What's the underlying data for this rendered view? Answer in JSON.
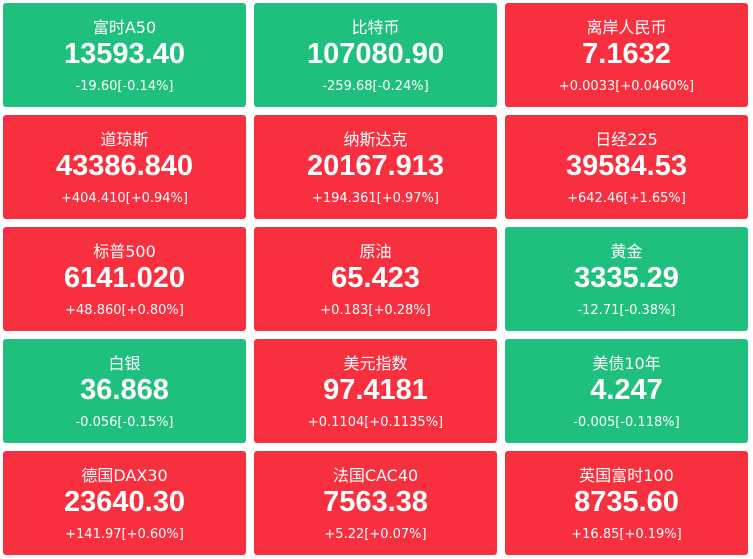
{
  "tiles": [
    {
      "name": "富时A50",
      "price": "13593.40",
      "change": "-19.60[-0.14%]",
      "color": "#1fc07d"
    },
    {
      "name": "比特币",
      "price": "107080.90",
      "change": "-259.68[-0.24%]",
      "color": "#1fc07d"
    },
    {
      "name": "离岸人民币",
      "price": "7.1632",
      "change": "+0.0033[+0.0460%]",
      "color": "#f82f3e"
    },
    {
      "name": "道琼斯",
      "price": "43386.840",
      "change": "+404.410[+0.94%]",
      "color": "#f82f3e"
    },
    {
      "name": "纳斯达克",
      "price": "20167.913",
      "change": "+194.361[+0.97%]",
      "color": "#f82f3e"
    },
    {
      "name": "日经225",
      "price": "39584.53",
      "change": "+642.46[+1.65%]",
      "color": "#f82f3e"
    },
    {
      "name": "标普500",
      "price": "6141.020",
      "change": "+48.860[+0.80%]",
      "color": "#f82f3e"
    },
    {
      "name": "原油",
      "price": "65.423",
      "change": "+0.183[+0.28%]",
      "color": "#f82f3e"
    },
    {
      "name": "黄金",
      "price": "3335.29",
      "change": "-12.71[-0.38%]",
      "color": "#1fc07d"
    },
    {
      "name": "白银",
      "price": "36.868",
      "change": "-0.056[-0.15%]",
      "color": "#1fc07d"
    },
    {
      "name": "美元指数",
      "price": "97.4181",
      "change": "+0.1104[+0.1135%]",
      "color": "#f82f3e"
    },
    {
      "name": "美债10年",
      "price": "4.247",
      "change": "-0.005[-0.118%]",
      "color": "#1fc07d"
    },
    {
      "name": "德国DAX30",
      "price": "23640.30",
      "change": "+141.97[+0.60%]",
      "color": "#f82f3e"
    },
    {
      "name": "法国CAC40",
      "price": "7563.38",
      "change": "+5.22[+0.07%]",
      "color": "#f82f3e"
    },
    {
      "name": "英国富时100",
      "price": "8735.60",
      "change": "+16.85[+0.19%]",
      "color": "#f82f3e"
    }
  ]
}
